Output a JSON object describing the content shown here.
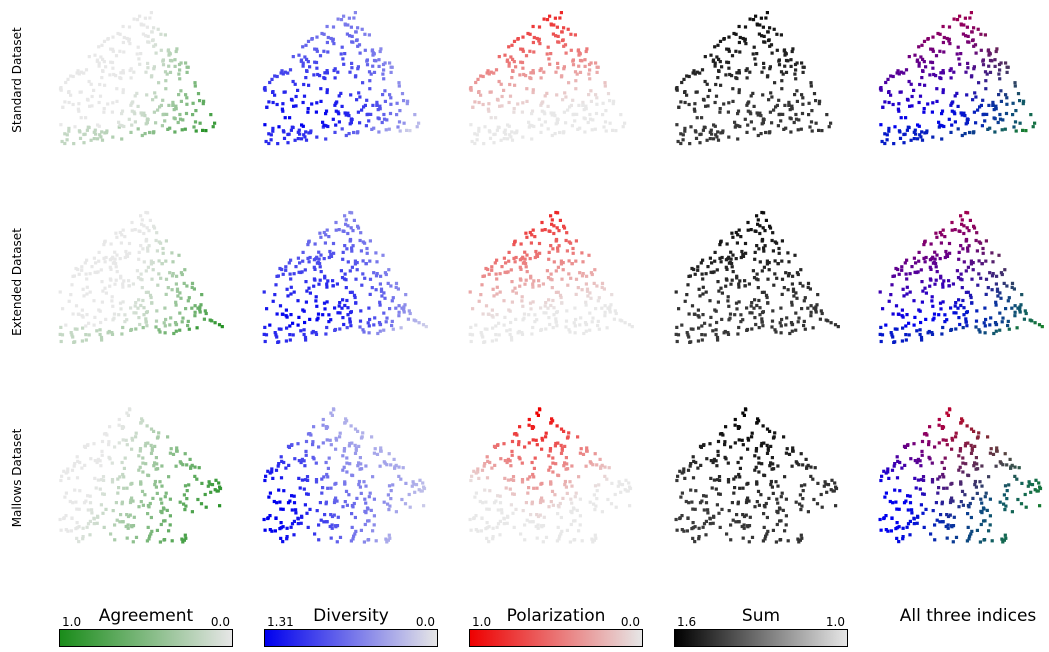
{
  "row_labels": [
    "Standard Dataset",
    "Extended Dataset",
    "Mallows Dataset"
  ],
  "colorbars": [
    {
      "title": "Agreement",
      "min_label": "1.0",
      "max_label": "0.0",
      "start": "#1a8c1a",
      "end": "#e6e6e6"
    },
    {
      "title": "Diversity",
      "min_label": "1.31",
      "max_label": "0.0",
      "start": "#0000ee",
      "end": "#e6e6e6"
    },
    {
      "title": "Polarization",
      "min_label": "1.0",
      "max_label": "0.0",
      "start": "#ee0000",
      "end": "#e6e6e6"
    },
    {
      "title": "Sum",
      "min_label": "1.6",
      "max_label": "1.0",
      "start": "#000000",
      "end": "#e6e6e6"
    }
  ],
  "combined_title": "All three indices",
  "chart_data": {
    "type": "scatter",
    "rows": [
      "Standard Dataset",
      "Extended Dataset",
      "Mallows Dataset"
    ],
    "columns": [
      "Agreement",
      "Diversity",
      "Polarization",
      "Sum",
      "All three indices"
    ],
    "shapes": [
      "fan",
      "fan",
      "mallows"
    ],
    "points_per_panel": 300,
    "encoding": "color = index value",
    "grid": false,
    "axes": "hidden"
  }
}
